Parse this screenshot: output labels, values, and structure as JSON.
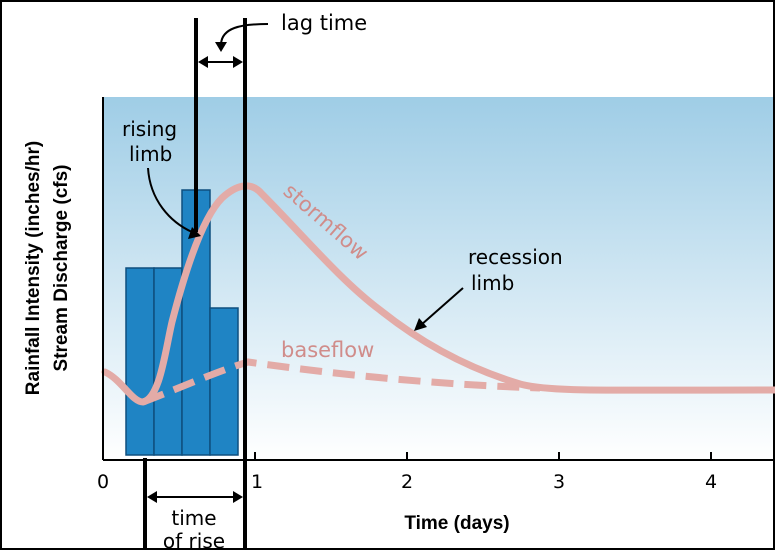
{
  "labels": {
    "lag_time": "lag time",
    "rising_limb_line1": "rising",
    "rising_limb_line2": "limb",
    "stormflow": "stormflow",
    "recession_limb_line1": "recession",
    "recession_limb_line2": "limb",
    "baseflow": "baseflow",
    "time_of_rise_line1": "time",
    "time_of_rise_line2": "of rise",
    "y_axis_rainfall": "Rainfall Intensity (inches/hr)",
    "y_axis_discharge": "Stream Discharge (cfs)",
    "x_axis": "Time (days)"
  },
  "x_ticks": [
    "0",
    "1",
    "2",
    "3",
    "4"
  ],
  "colors": {
    "sky_top": "#9fcde6",
    "sky_bottom": "#ffffff",
    "rain_bar": "#1f84c4",
    "rain_bar_edge": "#0e4f7e",
    "hydrograph": "#e3aba7",
    "label_pink": "#d08c8a",
    "ink": "#000000"
  },
  "chart_data": {
    "type": "bar",
    "rainfall_bars_relative": [
      0.67,
      0.67,
      0.98,
      0.46
    ],
    "x_range_days": [
      0,
      4.5
    ]
  }
}
